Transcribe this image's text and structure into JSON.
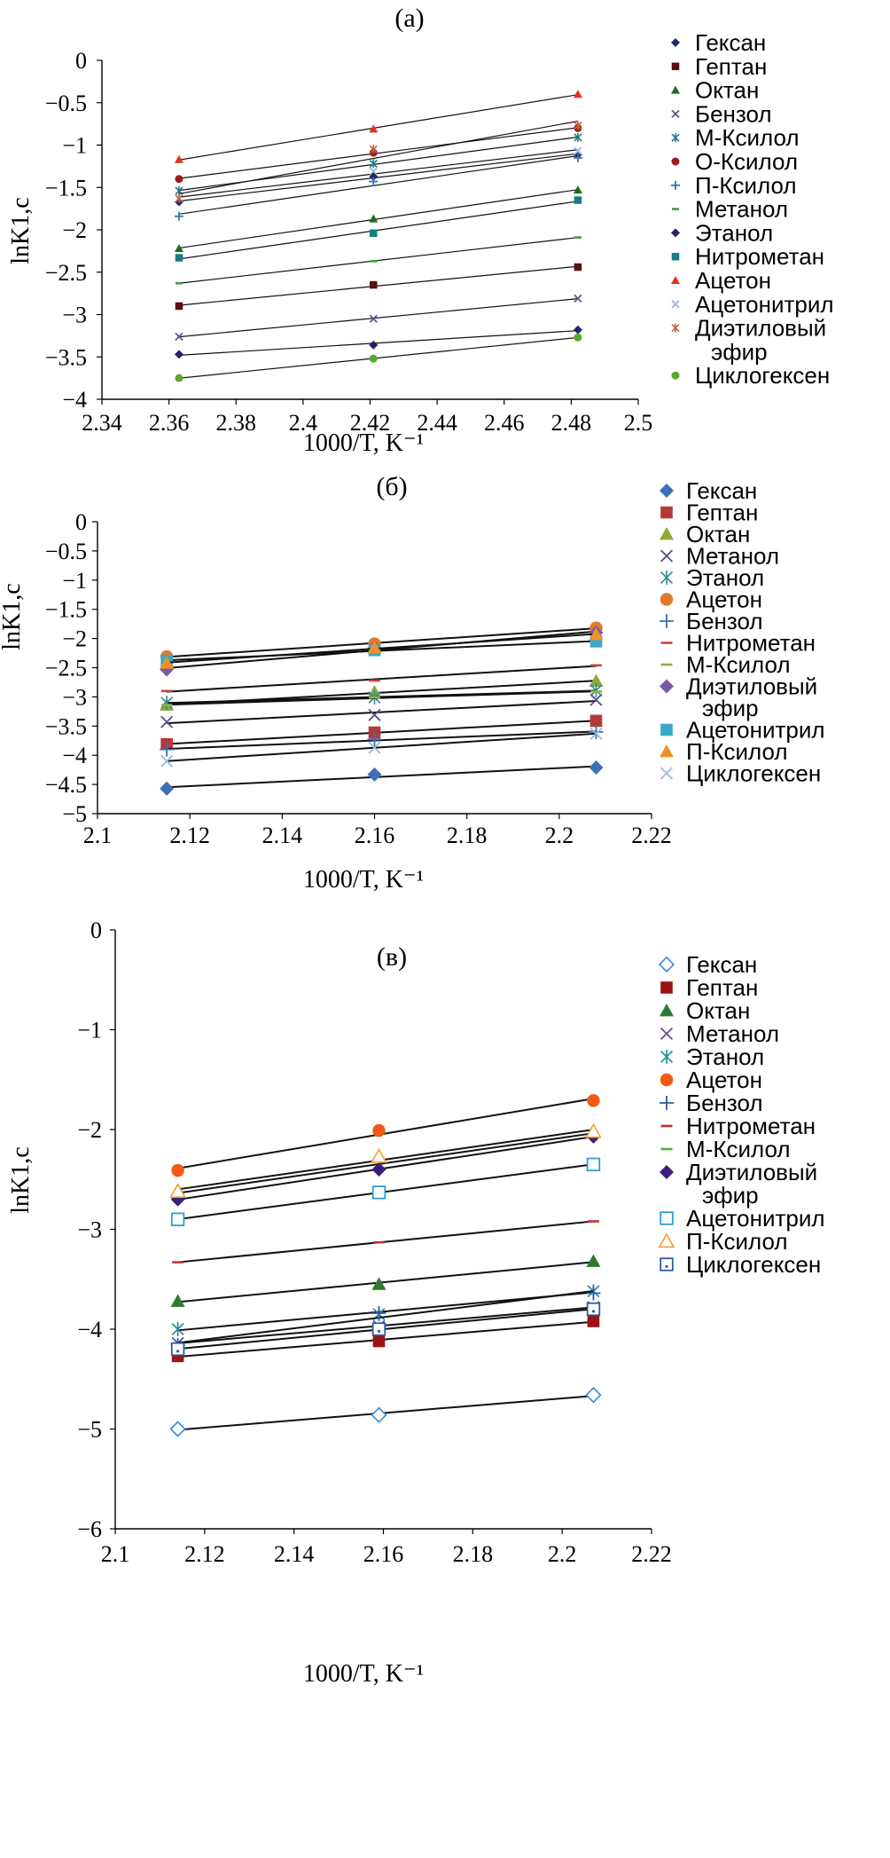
{
  "chart_data": [
    {
      "type": "scatter",
      "panel_label": "(а)",
      "xlabel": "1000/T, K⁻¹",
      "ylabel": "lnK1,c",
      "xlim": [
        2.34,
        2.5
      ],
      "ylim": [
        -4,
        0
      ],
      "xticks": [
        "2.34",
        "2.36",
        "2.38",
        "2.4",
        "2.42",
        "2.44",
        "2.46",
        "2.48",
        "2.5"
      ],
      "yticks": [
        "0",
        "−0.5",
        "−1",
        "−1.5",
        "−2",
        "−2.5",
        "−3",
        "−3.5",
        "−4"
      ],
      "legend_position": "right",
      "x": [
        2.363,
        2.421,
        2.482
      ],
      "series": [
        {
          "name": "Гексан",
          "marker": "diamond",
          "color": "#1f2a6b",
          "values": [
            -1.67,
            -1.37,
            -1.11
          ]
        },
        {
          "name": "Гептан",
          "marker": "square",
          "color": "#5a0f0f",
          "values": [
            -2.9,
            -2.65,
            -2.44
          ]
        },
        {
          "name": "Октан",
          "marker": "triangle",
          "color": "#1e6b1e",
          "values": [
            -2.22,
            -1.87,
            -1.53
          ]
        },
        {
          "name": "Бензол",
          "marker": "x",
          "color": "#6a4c93",
          "values": [
            -3.26,
            -3.05,
            -2.81
          ]
        },
        {
          "name": "М-Ксилол",
          "marker": "star",
          "color": "#1e7a8a",
          "values": [
            -1.54,
            -1.22,
            -0.91
          ]
        },
        {
          "name": "О-Ксилол",
          "marker": "circle",
          "color": "#9b1c1c",
          "values": [
            -1.4,
            -1.09,
            -0.8
          ]
        },
        {
          "name": "П-Ксилол",
          "marker": "plus",
          "color": "#2e75b6",
          "values": [
            -1.84,
            -1.43,
            -1.15
          ]
        },
        {
          "name": "Метанол",
          "marker": "dash",
          "color": "#3aa03a",
          "values": [
            -2.63,
            -2.37,
            -2.09
          ]
        },
        {
          "name": "Этанол",
          "marker": "diamond",
          "color": "#2a1f6b",
          "values": [
            -3.47,
            -3.36,
            -3.18
          ]
        },
        {
          "name": "Нитрометан",
          "marker": "square",
          "color": "#137f84",
          "values": [
            -2.33,
            -2.04,
            -1.65
          ]
        },
        {
          "name": "Ацетон",
          "marker": "triangle",
          "color": "#e8301c",
          "values": [
            -1.17,
            -0.81,
            -0.4
          ]
        },
        {
          "name": "Ацетонитрил",
          "marker": "x",
          "color": "#9db7d9",
          "values": [
            -1.63,
            -1.31,
            -1.07
          ]
        },
        {
          "name": "Диэтиловый эфир",
          "marker": "star",
          "color": "#c1613a",
          "values": [
            -1.63,
            -1.05,
            -0.77
          ]
        },
        {
          "name": "Циклогексен",
          "marker": "circle",
          "color": "#5aa832",
          "values": [
            -3.75,
            -3.52,
            -3.27
          ]
        }
      ]
    },
    {
      "type": "scatter",
      "panel_label": "(б)",
      "xlabel": "1000/T, K⁻¹",
      "ylabel": "lnK1,c",
      "xlim": [
        2.1,
        2.22
      ],
      "ylim": [
        -5,
        0
      ],
      "xticks": [
        "2.1",
        "2.12",
        "2.14",
        "2.16",
        "2.18",
        "2.2",
        "2.22"
      ],
      "yticks": [
        "0",
        "−0.5",
        "−1",
        "−1.5",
        "−2",
        "−2.5",
        "−3",
        "−3.5",
        "−4",
        "−4.5",
        "−5"
      ],
      "legend_position": "right",
      "x": [
        2.115,
        2.16,
        2.208
      ],
      "series": [
        {
          "name": "Гексан",
          "marker": "diamond",
          "color": "#3c6fb3",
          "values": [
            -4.57,
            -4.33,
            -4.21
          ]
        },
        {
          "name": "Гептан",
          "marker": "square",
          "color": "#b43a3a",
          "values": [
            -3.81,
            -3.61,
            -3.41
          ]
        },
        {
          "name": "Октан",
          "marker": "triangle",
          "color": "#8ea83a",
          "values": [
            -3.14,
            -2.92,
            -2.73
          ]
        },
        {
          "name": "Метанол",
          "marker": "x",
          "color": "#5e4a8c",
          "values": [
            -3.43,
            -3.31,
            -3.05
          ]
        },
        {
          "name": "Этанол",
          "marker": "star",
          "color": "#2e8a9a",
          "values": [
            -3.1,
            -3.01,
            -2.89
          ]
        },
        {
          "name": "Ацетон",
          "marker": "circle",
          "color": "#e07a2a",
          "values": [
            -2.31,
            -2.09,
            -1.82
          ]
        },
        {
          "name": "Бензол",
          "marker": "plus",
          "color": "#3c6fb3",
          "values": [
            -3.9,
            -3.73,
            -3.6
          ]
        },
        {
          "name": "Нитрометан",
          "marker": "dash",
          "color": "#c84040",
          "values": [
            -2.9,
            -2.72,
            -2.46
          ]
        },
        {
          "name": "М-Ксилол",
          "marker": "dash",
          "color": "#8ab04a",
          "values": [
            -3.14,
            -3.01,
            -2.91
          ]
        },
        {
          "name": "Диэтиловый эфир",
          "marker": "diamond",
          "color": "#7a5aa8",
          "values": [
            -2.53,
            -2.16,
            -1.9
          ]
        },
        {
          "name": "Ацетонитрил",
          "marker": "square",
          "color": "#3aa8c8",
          "values": [
            -2.38,
            -2.2,
            -2.05
          ]
        },
        {
          "name": "П-Ксилол",
          "marker": "triangle",
          "color": "#f0902a",
          "values": [
            -2.42,
            -2.16,
            -1.93
          ]
        },
        {
          "name": "Циклогексен",
          "marker": "x",
          "color": "#9db7e0",
          "values": [
            -4.1,
            -3.87,
            -3.63
          ]
        }
      ]
    },
    {
      "type": "scatter",
      "panel_label": "(в)",
      "xlabel": "1000/T, K⁻¹",
      "ylabel": "lnK1,c",
      "xlim": [
        2.1,
        2.22
      ],
      "ylim": [
        -6,
        0
      ],
      "xticks": [
        "2.1",
        "2.12",
        "2.14",
        "2.16",
        "2.18",
        "2.2",
        "2.22"
      ],
      "yticks": [
        "0",
        "−1",
        "−2",
        "−3",
        "−4",
        "−5",
        "−6"
      ],
      "legend_position": "right",
      "x": [
        2.114,
        2.159,
        2.207
      ],
      "series": [
        {
          "name": "Гексан",
          "marker": "open-diamond",
          "color": "#3c8ad8",
          "values": [
            -5.0,
            -4.86,
            -4.66
          ]
        },
        {
          "name": "Гептан",
          "marker": "square",
          "color": "#9a1414",
          "values": [
            -4.27,
            -4.12,
            -3.92
          ]
        },
        {
          "name": "Октан",
          "marker": "triangle",
          "color": "#2e7a2e",
          "values": [
            -3.72,
            -3.55,
            -3.32
          ]
        },
        {
          "name": "Метанол",
          "marker": "x",
          "color": "#6a4c93",
          "values": [
            -4.14,
            -3.97,
            -3.78
          ]
        },
        {
          "name": "Этанол",
          "marker": "star",
          "color": "#1e8a9a",
          "values": [
            -4.0,
            -3.85,
            -3.62
          ]
        },
        {
          "name": "Ацетон",
          "marker": "circle",
          "color": "#f05a14",
          "values": [
            -2.41,
            -2.01,
            -1.71
          ]
        },
        {
          "name": "Бензол",
          "marker": "plus",
          "color": "#2e5aa8",
          "values": [
            -4.16,
            -3.84,
            -3.64
          ]
        },
        {
          "name": "Нитрометан",
          "marker": "dash",
          "color": "#c03030",
          "values": [
            -3.33,
            -3.13,
            -2.92
          ]
        },
        {
          "name": "М-Ксилол",
          "marker": "dash",
          "color": "#4ab03a",
          "values": [
            -2.65,
            -2.32,
            -2.05
          ]
        },
        {
          "name": "Диэтиловый эфир",
          "marker": "diamond",
          "color": "#3a1f7a",
          "values": [
            -2.7,
            -2.4,
            -2.07
          ]
        },
        {
          "name": "Ацетонитрил",
          "marker": "open-square",
          "color": "#2aa0d0",
          "values": [
            -2.9,
            -2.63,
            -2.35
          ]
        },
        {
          "name": "П-Ксилол",
          "marker": "open-triangle",
          "color": "#f0a030",
          "values": [
            -2.62,
            -2.27,
            -2.02
          ]
        },
        {
          "name": "Циклогексен",
          "marker": "open-square-dot",
          "color": "#2e5aa8",
          "values": [
            -4.2,
            -4.0,
            -3.8
          ]
        }
      ]
    }
  ]
}
